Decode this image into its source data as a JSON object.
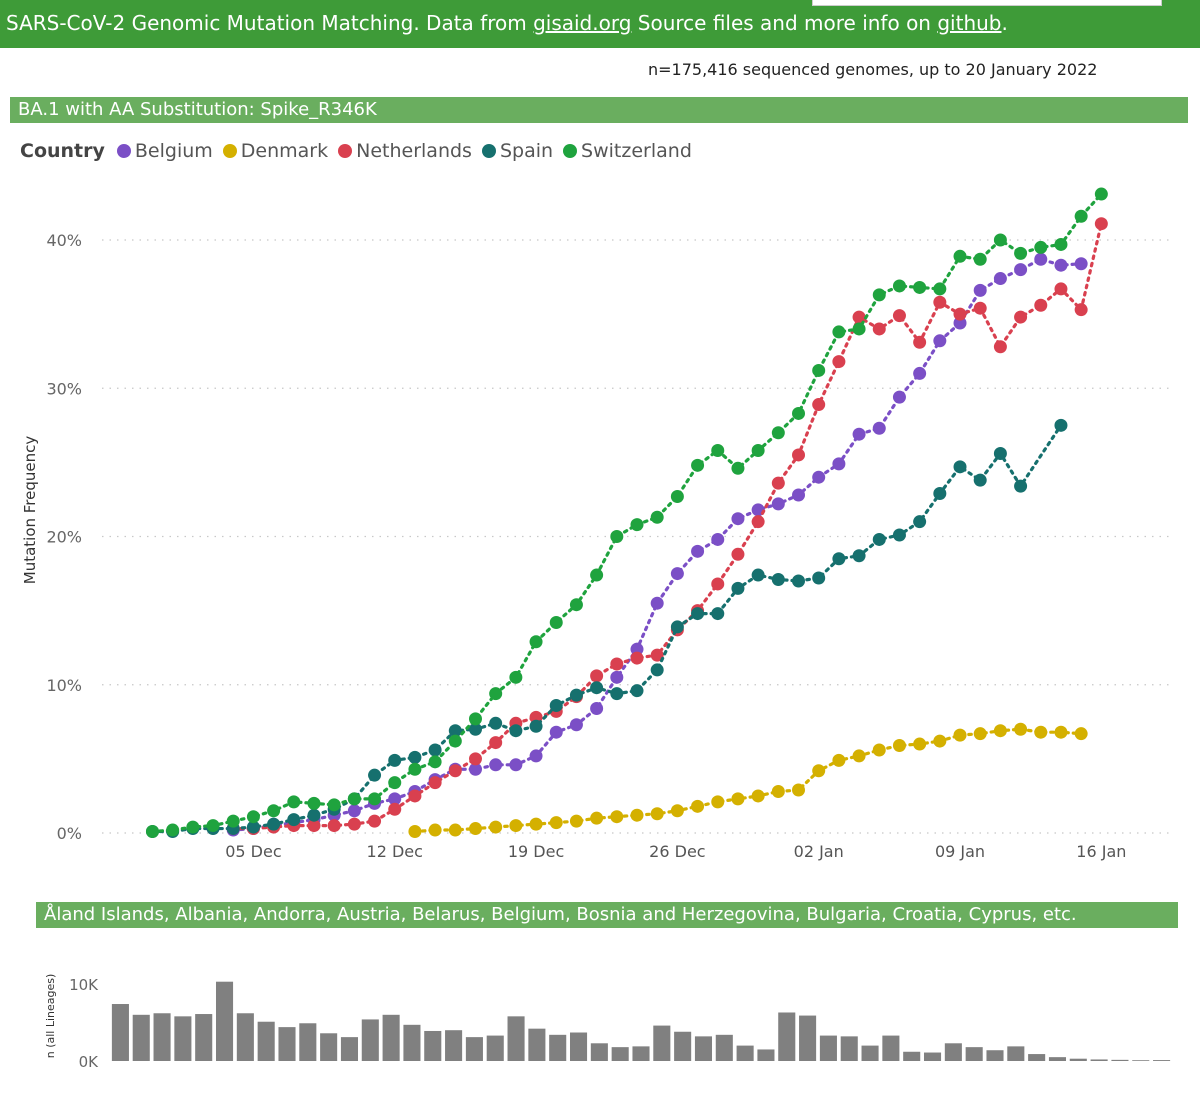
{
  "header": {
    "prefix": "SARS-CoV-2 Genomic Mutation Matching. Data from ",
    "link1": "gisaid.org",
    "middle": " Source files and more info on ",
    "link2": "github",
    "suffix": ".",
    "bg_color": "#3e9b38"
  },
  "genome_count": "n=175,416 sequenced genomes, up to 20 January 2022",
  "chart_title": "BA.1 with AA Substitution: Spike_R346K",
  "legend": {
    "title": "Country",
    "items": [
      {
        "name": "Belgium",
        "color": "#7b4fc6"
      },
      {
        "name": "Denmark",
        "color": "#d4b000"
      },
      {
        "name": "Netherlands",
        "color": "#d9404f"
      },
      {
        "name": "Spain",
        "color": "#16706e"
      },
      {
        "name": "Switzerland",
        "color": "#1fa33e"
      }
    ]
  },
  "bottom_title": "Åland Islands, Albania, Andorra, Austria, Belarus, Belgium, Bosnia and Herzegovina, Bulgaria, Croatia, Cyprus, etc.",
  "chart_data": [
    {
      "type": "line",
      "title": "BA.1 with AA Substitution: Spike_R346K",
      "ylabel": "Mutation Frequency",
      "xlabel": "",
      "ylim": [
        0,
        45
      ],
      "yticks": [
        0,
        10,
        20,
        30,
        40
      ],
      "ytick_labels": [
        "0%",
        "10%",
        "20%",
        "30%",
        "40%"
      ],
      "x_start_day": 1,
      "x_unit": "day (1 = 01 Dec 2021)",
      "xlim": [
        -2.5,
        50.5
      ],
      "xticks": [
        5,
        12,
        19,
        26,
        33,
        40,
        47
      ],
      "xtick_labels": [
        "05 Dec",
        "12 Dec",
        "19 Dec",
        "26 Dec",
        "02 Jan",
        "09 Jan",
        "16 Jan"
      ],
      "series": [
        {
          "name": "Belgium",
          "start_day": 4,
          "values": [
            0.2,
            0.3,
            0.5,
            0.7,
            0.9,
            1.2,
            1.5,
            2.0,
            2.3,
            2.8,
            3.6,
            4.3,
            4.3,
            4.6,
            4.6,
            5.2,
            6.8,
            7.3,
            8.4,
            10.5,
            12.4,
            15.5,
            17.5,
            19.0,
            19.8,
            21.2,
            21.8,
            22.2,
            22.8,
            24.0,
            24.9,
            26.9,
            27.3,
            29.4,
            31.0,
            33.2,
            34.4,
            36.6,
            37.4,
            38.0,
            38.7,
            38.3,
            38.4
          ]
        },
        {
          "name": "Denmark",
          "start_day": 13,
          "values": [
            0.1,
            0.2,
            0.2,
            0.3,
            0.4,
            0.5,
            0.6,
            0.7,
            0.8,
            1.0,
            1.1,
            1.2,
            1.3,
            1.5,
            1.8,
            2.1,
            2.3,
            2.5,
            2.8,
            2.9,
            4.2,
            4.9,
            5.2,
            5.6,
            5.9,
            6.0,
            6.2,
            6.6,
            6.7,
            6.9,
            7.0,
            6.8,
            6.8,
            6.7
          ]
        },
        {
          "name": "Netherlands",
          "start_day": 4,
          "values": [
            0.3,
            0.3,
            0.4,
            0.5,
            0.5,
            0.5,
            0.6,
            0.8,
            1.6,
            2.5,
            3.4,
            4.2,
            5.0,
            6.1,
            7.4,
            7.8,
            8.2,
            9.2,
            10.6,
            11.4,
            11.8,
            12.0,
            13.7,
            15.0,
            16.8,
            18.8,
            21.0,
            23.6,
            25.5,
            28.9,
            31.8,
            34.8,
            34.0,
            34.9,
            33.1,
            35.8,
            35.0,
            35.4,
            32.8,
            34.8,
            35.6,
            36.7,
            35.3,
            41.1
          ]
        },
        {
          "name": "Spain",
          "start_day": 0,
          "values": [
            0.1,
            0.1,
            0.3,
            0.3,
            0.3,
            0.4,
            0.6,
            0.9,
            1.2,
            1.6,
            2.3,
            3.9,
            4.9,
            5.1,
            5.6,
            6.9,
            7.0,
            7.4,
            6.9,
            7.2,
            8.6,
            9.3,
            9.8,
            9.4,
            9.6,
            11.0,
            13.9,
            14.8,
            14.8,
            16.5,
            17.4,
            17.1,
            17.0,
            17.2,
            18.5,
            18.7,
            19.8,
            20.1,
            21.0,
            22.9,
            24.7,
            23.8,
            25.6,
            23.4,
            null,
            27.5
          ]
        },
        {
          "name": "Switzerland",
          "start_day": 0,
          "values": [
            0.1,
            0.2,
            0.4,
            0.5,
            0.8,
            1.1,
            1.5,
            2.1,
            2.0,
            1.9,
            2.3,
            2.3,
            3.4,
            4.3,
            4.8,
            6.2,
            7.7,
            9.4,
            10.5,
            12.9,
            14.2,
            15.4,
            17.4,
            20.0,
            20.8,
            21.3,
            22.7,
            24.8,
            25.8,
            24.6,
            25.8,
            27.0,
            28.3,
            31.2,
            33.8,
            34.0,
            36.3,
            36.9,
            36.8,
            36.7,
            38.9,
            38.7,
            40.0,
            39.1,
            39.5,
            39.7,
            41.6,
            43.1
          ]
        }
      ]
    },
    {
      "type": "bar",
      "ylabel": "n (all Lineages)",
      "ylim": [
        0,
        11500
      ],
      "yticks": [
        0,
        10000
      ],
      "ytick_labels": [
        "0K",
        "10K"
      ],
      "values": [
        7400,
        6000,
        6200,
        5800,
        6100,
        10300,
        6200,
        5100,
        4400,
        4900,
        3600,
        3100,
        5400,
        6000,
        4700,
        3900,
        4000,
        3100,
        3300,
        5800,
        4200,
        3400,
        3700,
        2300,
        1800,
        1900,
        4600,
        3800,
        3200,
        3400,
        2000,
        1500,
        6300,
        5900,
        3300,
        3200,
        2000,
        3300,
        1200,
        1100,
        2300,
        1800,
        1400,
        1900,
        900,
        500,
        300,
        200,
        150,
        100,
        120
      ]
    }
  ]
}
